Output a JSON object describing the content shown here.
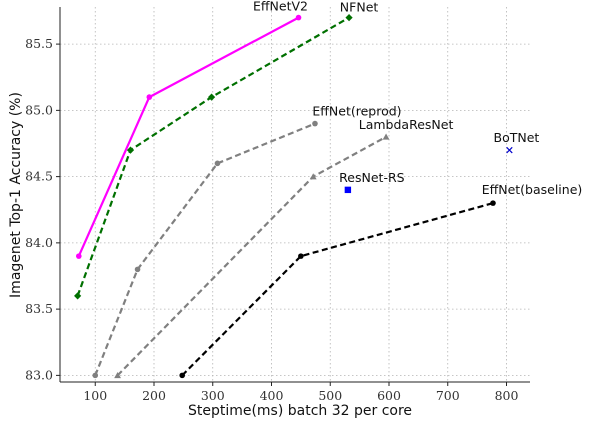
{
  "chart_data": {
    "type": "line",
    "title": "",
    "xlabel": "Steptime(ms) batch 32 per core",
    "ylabel": "Imagenet Top-1 Accuracy (%)",
    "xlim": [
      40,
      840
    ],
    "ylim": [
      82.95,
      85.78
    ],
    "xticks": [
      100,
      200,
      300,
      400,
      500,
      600,
      700,
      800
    ],
    "yticks": [
      83.0,
      83.5,
      84.0,
      84.5,
      85.0,
      85.5
    ],
    "xtick_labels": [
      "100",
      "200",
      "300",
      "400",
      "500",
      "600",
      "700",
      "800"
    ],
    "ytick_labels": [
      "83.0",
      "83.5",
      "84.0",
      "84.5",
      "85.0",
      "85.5"
    ],
    "grid": true,
    "series": [
      {
        "name": "EffNetV2",
        "color": "#ff00ff",
        "line_style": "solid",
        "marker": "circle",
        "points": [
          [
            72,
            83.9
          ],
          [
            192,
            85.1
          ],
          [
            446,
            85.7
          ]
        ]
      },
      {
        "name": "NFNet",
        "color": "#007000",
        "line_style": "dashed",
        "marker": "diamond",
        "points": [
          [
            70,
            83.6
          ],
          [
            160,
            84.7
          ],
          [
            298,
            85.1
          ],
          [
            532,
            85.7
          ]
        ]
      },
      {
        "name": "EffNet(reprod)",
        "color": "#808080",
        "line_style": "dashed",
        "marker": "circle",
        "points": [
          [
            100,
            83.0
          ],
          [
            172,
            83.8
          ],
          [
            308,
            84.6
          ],
          [
            474,
            84.9
          ]
        ]
      },
      {
        "name": "LambdaResNet",
        "color": "#808080",
        "line_style": "dashed",
        "marker": "triangle",
        "points": [
          [
            138,
            83.0
          ],
          [
            471,
            84.5
          ],
          [
            595,
            84.8
          ]
        ]
      },
      {
        "name": "EffNet(baseline)",
        "color": "#000000",
        "line_style": "dashed",
        "marker": "circle",
        "points": [
          [
            248,
            83.0
          ],
          [
            450,
            83.9
          ],
          [
            777,
            84.3
          ]
        ]
      },
      {
        "name": "ResNet-RS",
        "color": "#0000ff",
        "line_style": "none",
        "marker": "square",
        "points": [
          [
            530,
            84.4
          ]
        ]
      },
      {
        "name": "BoTNet",
        "color": "#0000cc",
        "line_style": "none",
        "marker": "x",
        "points": [
          [
            805,
            84.7
          ]
        ]
      }
    ]
  }
}
